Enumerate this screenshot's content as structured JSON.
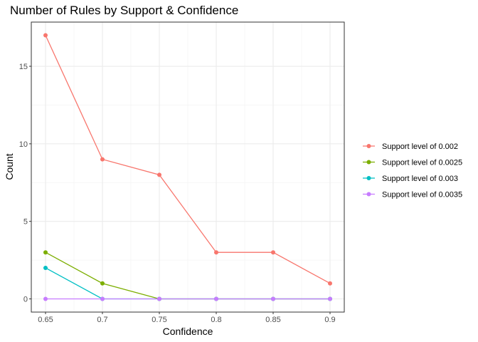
{
  "chart_data": {
    "type": "line",
    "title": "Number of Rules by Support & Confidence",
    "xlabel": "Confidence",
    "ylabel": "Count",
    "x": [
      0.65,
      0.7,
      0.75,
      0.8,
      0.85,
      0.9
    ],
    "x_tick_labels": [
      "0.65",
      "0.7",
      "0.75",
      "0.8",
      "0.85",
      "0.9"
    ],
    "y_ticks": [
      0,
      5,
      10,
      15
    ],
    "y_tick_labels": [
      "0",
      "5",
      "10",
      "15"
    ],
    "xlim": [
      0.6375,
      0.9125
    ],
    "ylim": [
      -0.85,
      17.85
    ],
    "grid": true,
    "legend_position": "right",
    "series": [
      {
        "name": "Support level of 0.002",
        "color": "#F8766D",
        "values": [
          17,
          9,
          8,
          3,
          3,
          1
        ]
      },
      {
        "name": "Support level of 0.0025",
        "color": "#7CAE00",
        "values": [
          3,
          1,
          0,
          0,
          0,
          0
        ]
      },
      {
        "name": "Support level of 0.003",
        "color": "#00BFC4",
        "values": [
          2,
          0,
          0,
          0,
          0,
          0
        ]
      },
      {
        "name": "Support level of 0.0035",
        "color": "#C77CFF",
        "values": [
          0,
          0,
          0,
          0,
          0,
          0
        ]
      }
    ]
  }
}
